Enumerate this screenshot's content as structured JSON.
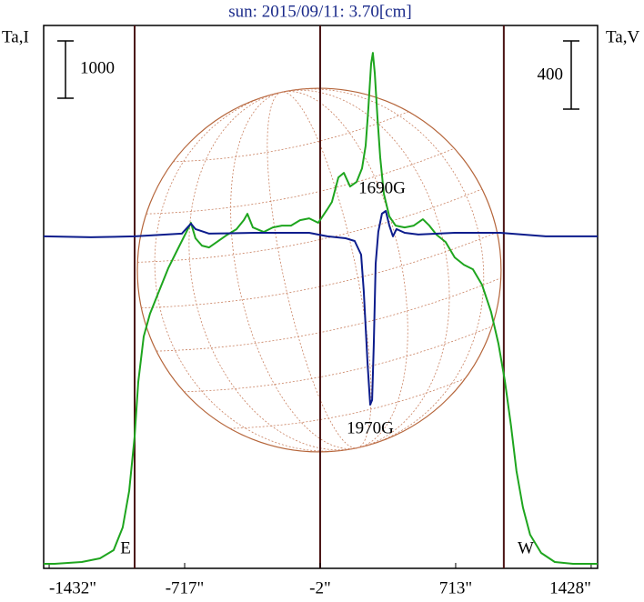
{
  "chart_data": {
    "type": "line",
    "title": "sun: 2015/09/11: 3.70[cm]",
    "ylabel": "Ta,I",
    "y2label": "Ta,V",
    "xlim": [
      -1461,
      1462
    ],
    "xticks": [
      {
        "value": -1432,
        "label": "-1432\""
      },
      {
        "value": -717,
        "label": "-717\""
      },
      {
        "value": -2,
        "label": "-2\""
      },
      {
        "value": 713,
        "label": "713\""
      },
      {
        "value": 1428,
        "label": "1428\""
      }
    ],
    "ylim": [
      0,
      9476
    ],
    "y2lim": [
      -1947,
      1237
    ],
    "vlines": [
      -981,
      -2,
      967
    ],
    "scale_bars": [
      {
        "axis": "y",
        "value": 1000
      },
      {
        "axis": "y2",
        "value": 400
      }
    ],
    "annotations": [
      "1690G",
      "1970G",
      "E",
      "W"
    ],
    "series": [
      {
        "name": "I",
        "color": "#1ea51e",
        "axis": "y",
        "x": [
          -1461,
          -1404,
          -1260,
          -1164,
          -1092,
          -1044,
          -1010,
          -981,
          -962,
          -933,
          -900,
          -852,
          -804,
          -756,
          -708,
          -684,
          -660,
          -626,
          -588,
          -540,
          -492,
          -444,
          -405,
          -386,
          -357,
          -300,
          -252,
          -204,
          -156,
          -108,
          -60,
          -12,
          36,
          60,
          94,
          123,
          156,
          190,
          219,
          238,
          252,
          267,
          276,
          286,
          300,
          315,
          334,
          363,
          396,
          444,
          492,
          540,
          574,
          612,
          660,
          708,
          756,
          804,
          852,
          900,
          939,
          972,
          1005,
          1034,
          1068,
          1106,
          1164,
          1236,
          1332,
          1462
        ],
        "values": [
          79,
          79,
          111,
          175,
          317,
          714,
          1349,
          2301,
          3253,
          4047,
          4444,
          4841,
          5237,
          5555,
          5872,
          6031,
          5761,
          5634,
          5602,
          5713,
          5824,
          5919,
          6078,
          6189,
          5951,
          5872,
          5951,
          5983,
          5983,
          6078,
          6110,
          6031,
          6268,
          6395,
          6824,
          6903,
          6665,
          6744,
          6983,
          7379,
          8014,
          8808,
          8998,
          8649,
          7887,
          7173,
          6538,
          6142,
          5983,
          5951,
          5983,
          6094,
          5983,
          5824,
          5697,
          5427,
          5300,
          5221,
          4951,
          4475,
          3920,
          3285,
          2491,
          1698,
          1063,
          587,
          270,
          111,
          79,
          79
        ]
      },
      {
        "name": "V",
        "color": "#0c1c8c",
        "axis": "y2",
        "x": [
          -1461,
          -1212,
          -981,
          -732,
          -684,
          -660,
          -588,
          -348,
          -60,
          36,
          132,
          180,
          214,
          228,
          248,
          262,
          272,
          281,
          291,
          305,
          324,
          344,
          363,
          382,
          401,
          444,
          516,
          708,
          948,
          1188,
          1462
        ],
        "values": [
          0,
          -5,
          0,
          16,
          75,
          43,
          16,
          21,
          21,
          0,
          -11,
          -27,
          -107,
          -320,
          -747,
          -987,
          -960,
          -640,
          -160,
          27,
          133,
          149,
          64,
          0,
          43,
          21,
          11,
          21,
          21,
          0,
          0
        ]
      }
    ]
  }
}
